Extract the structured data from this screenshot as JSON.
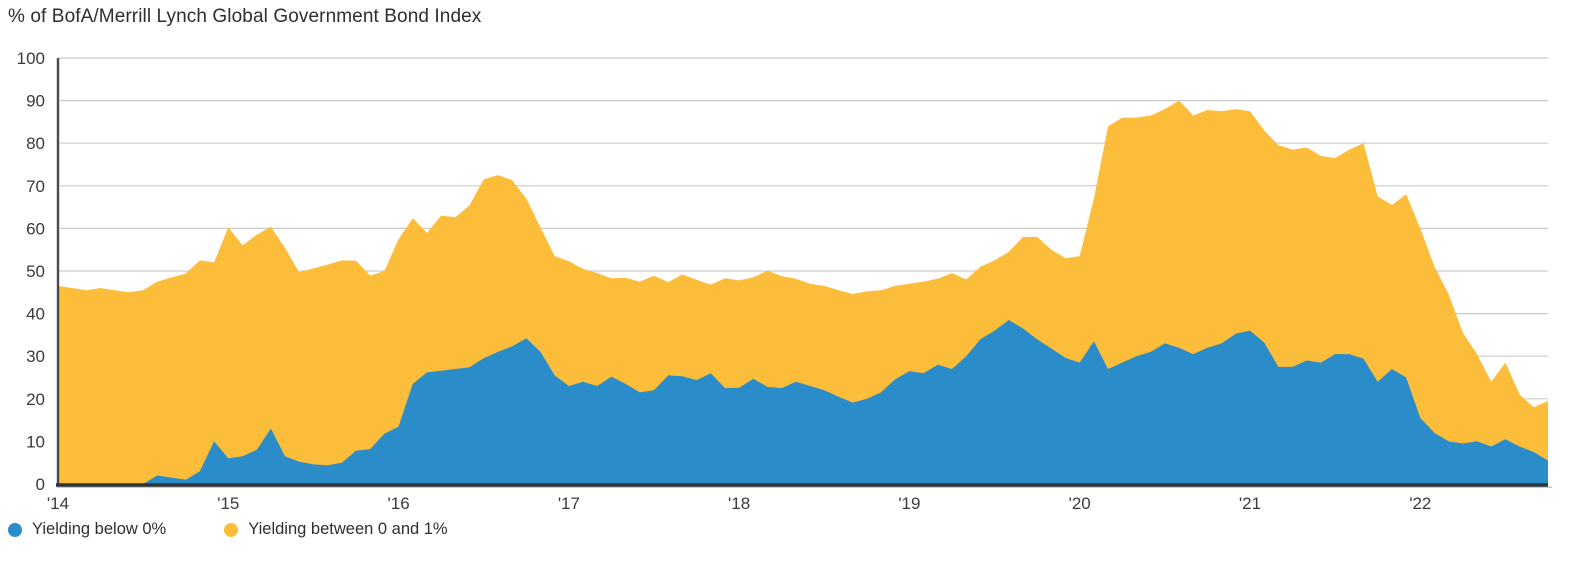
{
  "title": "% of BofA/Merrill Lynch Global Government Bond Index",
  "colors": {
    "below_zero": "#2b8cca",
    "zero_to_one": "#fcbd3a",
    "gridline": "#cccccc",
    "axis_left": "#4b4b4b",
    "axis_bottom": "#30343a",
    "axis_shadow": "#c9c9c9",
    "text": "#3b3b3b"
  },
  "legend": [
    {
      "label": "Yielding below 0%",
      "color": "#2b8cca"
    },
    {
      "label": "Yielding between 0 and 1%",
      "color": "#fcbd3a"
    }
  ],
  "chart_data": {
    "type": "area",
    "stacked": true,
    "title": "% of BofA/Merrill Lynch Global Government Bond Index",
    "x_start": "2014-01",
    "x_step": "1 month",
    "x_tick_labels": [
      "'14",
      "'15",
      "'16",
      "'17",
      "'18",
      "'19",
      "'20",
      "'21",
      "'22"
    ],
    "months_per_tick": 12,
    "ylim": [
      0,
      100
    ],
    "y_ticks": [
      0,
      10,
      20,
      30,
      40,
      50,
      60,
      70,
      80,
      90,
      100
    ],
    "grid": "horizontal",
    "legend_position": "bottom-left",
    "series": [
      {
        "name": "Yielding below 0%",
        "color": "#2b8cca",
        "values": [
          0,
          0,
          0,
          0,
          0,
          0,
          0,
          2,
          1.5,
          1,
          3,
          10,
          6,
          6.5,
          8,
          13,
          6.5,
          5.2,
          4.6,
          4.4,
          5,
          7.8,
          8.2,
          11.8,
          13.5,
          23.5,
          26.2,
          26.6,
          27,
          27.4,
          29.5,
          31,
          32.3,
          34.2,
          31,
          25.5,
          23,
          24,
          23,
          25.2,
          23.5,
          21.5,
          22,
          25.5,
          25.3,
          24.4,
          26,
          22.5,
          22.6,
          24.7,
          22.8,
          22.5,
          24,
          23,
          22,
          20.5,
          19.1,
          20,
          21.5,
          24.6,
          26.5,
          26,
          28,
          27,
          30,
          34,
          36,
          38.5,
          36.5,
          34,
          31.8,
          29.6,
          28.5,
          33.5,
          27,
          28.5,
          30,
          31,
          33,
          32,
          30.5,
          32,
          33,
          35.3,
          36,
          33.2,
          27.5,
          27.5,
          29,
          28.5,
          30.5,
          30.5,
          29.4,
          24,
          27,
          25,
          15.5,
          12,
          10,
          9.5,
          10,
          8.8,
          10.5,
          8.8,
          7.5,
          5.5
        ]
      },
      {
        "name": "Yielding between 0 and 1%",
        "color": "#fcbd3a",
        "values": [
          46.5,
          46,
          45.5,
          46,
          45.5,
          45,
          45.5,
          45.5,
          47,
          48.4,
          49.5,
          42,
          54.3,
          49.5,
          50.5,
          47.4,
          48.9,
          44.5,
          46,
          47.1,
          47.5,
          44.6,
          40.7,
          38.2,
          44,
          38.9,
          32.8,
          36.4,
          35.6,
          38,
          42,
          41.5,
          39,
          32.8,
          29.2,
          28,
          29.3,
          26.5,
          26.5,
          23.1,
          24.9,
          26,
          26.9,
          21.9,
          23.9,
          23.5,
          20.8,
          25.8,
          25.2,
          23.8,
          27.3,
          26.3,
          24.2,
          24,
          24.5,
          25,
          25.5,
          25.2,
          24,
          21.9,
          20.5,
          21.5,
          20.2,
          22.5,
          18,
          17,
          16.5,
          16,
          21.5,
          24,
          23.2,
          23.4,
          25,
          33.5,
          57,
          57.5,
          56,
          55.5,
          55,
          58,
          56,
          55.8,
          54.5,
          52.7,
          51.5,
          49.8,
          52,
          51,
          50,
          48.5,
          46,
          48,
          50.6,
          43.5,
          38.5,
          43,
          44.5,
          39,
          34.5,
          26,
          20.5,
          15.2,
          18,
          12.2,
          10.5,
          14
        ]
      }
    ]
  }
}
